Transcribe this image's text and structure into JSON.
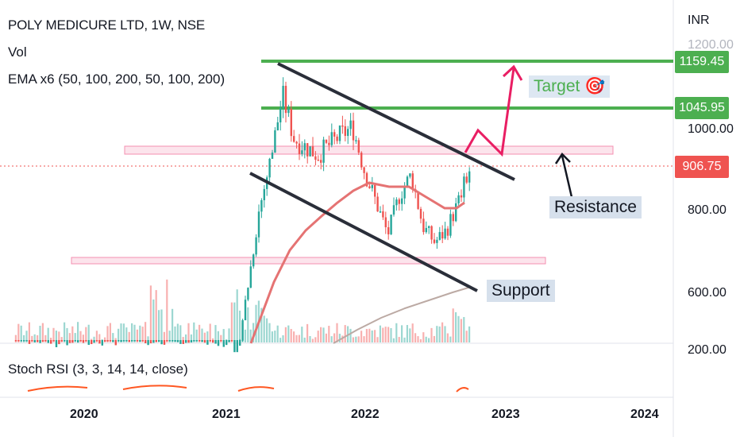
{
  "header": {
    "title": "POLY MEDICURE LTD, 1W, NSE",
    "volume_label": "Vol",
    "ema_label": "EMA x6  (50, 100, 200, 50, 100, 200)",
    "rsi_label": "Stoch RSI (3, 3, 14, 14, close)"
  },
  "axis": {
    "currency": "INR",
    "price_ticks": [
      "1200.00",
      "1000.00",
      "800.00",
      "600.00",
      "200.00"
    ],
    "years": [
      "2020",
      "2021",
      "2022",
      "2023",
      "2024"
    ]
  },
  "price_tags": {
    "target_high": "1159.45",
    "target_mid": "1045.95",
    "last": "906.75"
  },
  "annotations": {
    "target": "Target 🎯",
    "resistance": "Resistance",
    "support": "Support"
  },
  "colors": {
    "up": "#26a69a",
    "down": "#ef5350",
    "level": "#4caf50",
    "zone": "#f8bbd0",
    "channel": "#2a2e39",
    "ema": "#e57373"
  },
  "chart_data": {
    "type": "candlestick",
    "timeframe": "1W",
    "ylim": [
      200,
      1200
    ],
    "points": [
      [
        "2020-01",
        330
      ],
      [
        "2020-06",
        320
      ],
      [
        "2020-12",
        340
      ],
      [
        "2021-02",
        420
      ],
      [
        "2021-03",
        600
      ],
      [
        "2021-04",
        800
      ],
      [
        "2021-05",
        930
      ],
      [
        "2021-06",
        1090
      ],
      [
        "2021-07",
        980
      ],
      [
        "2021-09",
        940
      ],
      [
        "2021-11",
        990
      ],
      [
        "2021-12",
        1010
      ],
      [
        "2022-01",
        900
      ],
      [
        "2022-03",
        740
      ],
      [
        "2022-04",
        840
      ],
      [
        "2022-05",
        890
      ],
      [
        "2022-06",
        760
      ],
      [
        "2022-07",
        720
      ],
      [
        "2022-08",
        750
      ],
      [
        "2022-09",
        820
      ],
      [
        "2022-10",
        906.75
      ]
    ],
    "levels": [
      {
        "label": "1159.45",
        "value": 1159.45
      },
      {
        "label": "1045.95",
        "value": 1045.95
      }
    ],
    "last_price": 906.75
  }
}
